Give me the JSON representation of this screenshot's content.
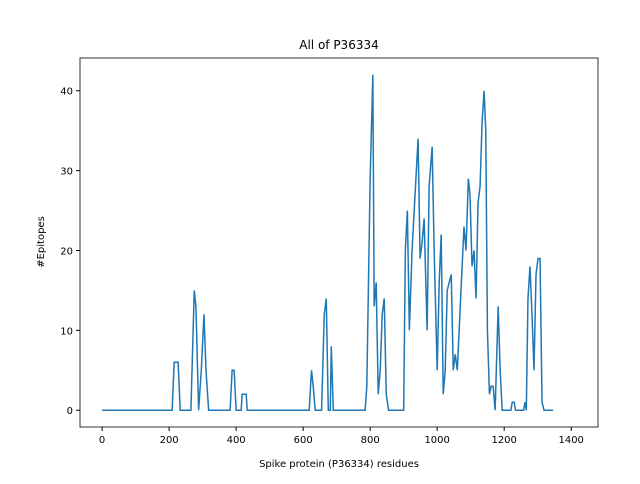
{
  "chart_data": {
    "type": "line",
    "title": "All of P36334",
    "x_label": "Spike protein (P36334) residues",
    "y_label": "#Epitopes",
    "series": [
      {
        "name": "P36334",
        "color": "#1f77b4",
        "x": [
          0,
          209,
          215,
          227,
          233,
          265,
          275,
          280,
          288,
          296,
          304,
          310,
          318,
          382,
          388,
          394,
          400,
          415,
          418,
          430,
          433,
          618,
          625,
          630,
          636,
          655,
          663,
          669,
          675,
          681,
          684,
          690,
          785,
          790,
          800,
          808,
          812,
          818,
          824,
          830,
          836,
          842,
          848,
          855,
          900,
          905,
          911,
          917,
          925,
          943,
          949,
          955,
          961,
          970,
          976,
          985,
          991,
          1000,
          1006,
          1012,
          1018,
          1024,
          1030,
          1042,
          1048,
          1054,
          1060,
          1070,
          1080,
          1086,
          1093,
          1098,
          1104,
          1110,
          1116,
          1122,
          1128,
          1134,
          1140,
          1145,
          1150,
          1156,
          1161,
          1167,
          1173,
          1182,
          1188,
          1194,
          1220,
          1224,
          1230,
          1234,
          1258,
          1262,
          1266,
          1271,
          1277,
          1283,
          1289,
          1295,
          1301,
          1307,
          1313,
          1319,
          1346
        ],
        "values": [
          0,
          0,
          6,
          6,
          0,
          0,
          15,
          13,
          0,
          5,
          12,
          5,
          0,
          0,
          5,
          5,
          0,
          0,
          2,
          2,
          0,
          0,
          5,
          3,
          0,
          0,
          12,
          14,
          0,
          0,
          8,
          0,
          0,
          3,
          29,
          42,
          13,
          16,
          2,
          5,
          12,
          14,
          2,
          0,
          0,
          20,
          25,
          10,
          20,
          34,
          19,
          21,
          24,
          10,
          28,
          33,
          20,
          5,
          16,
          22,
          2,
          5,
          15,
          17,
          5,
          7,
          5,
          14,
          23,
          20,
          29,
          27,
          18,
          20,
          14,
          26,
          28,
          36,
          40,
          35,
          10,
          2,
          3,
          3,
          0,
          13,
          5,
          0,
          0,
          1,
          1,
          0,
          0,
          1,
          0,
          14,
          18,
          12,
          5,
          17,
          19,
          19,
          1,
          0,
          0
        ]
      }
    ],
    "xlim": [
      -66,
      1480
    ],
    "ylim": [
      -2.1,
      44.1
    ],
    "xticks": [
      0,
      200,
      400,
      600,
      800,
      1000,
      1200,
      1400
    ],
    "yticks": [
      0,
      10,
      20,
      30,
      40
    ]
  }
}
